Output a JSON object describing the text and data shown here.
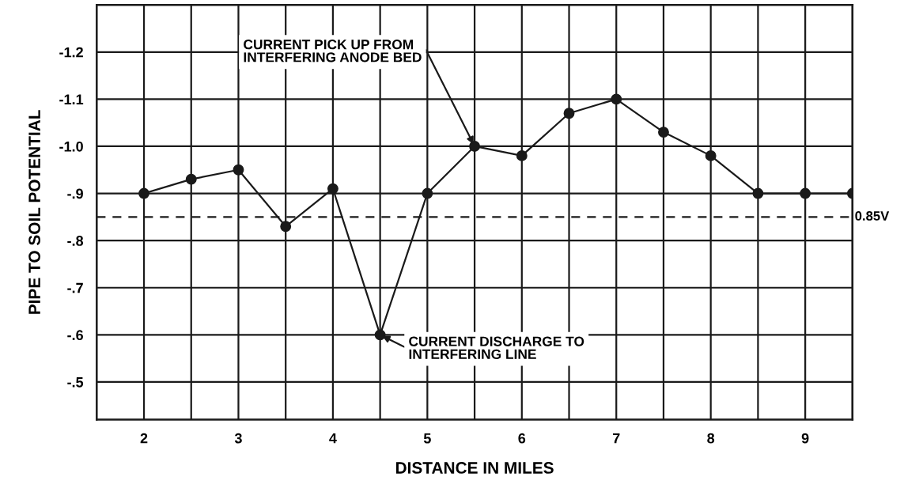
{
  "chart_data": {
    "type": "line",
    "xlabel": "DISTANCE IN MILES",
    "ylabel": "PIPE TO SOIL POTENTIAL",
    "x": [
      2,
      2.5,
      3,
      3.5,
      4,
      4.5,
      5,
      5.5,
      6,
      6.5,
      7,
      7.5,
      8,
      8.5,
      9,
      9.5
    ],
    "series": [
      {
        "color": "#1a1a1a",
        "values": [
          -0.9,
          -0.93,
          -0.95,
          -0.83,
          -0.91,
          -0.6,
          -0.9,
          -1.0,
          -0.98,
          -1.07,
          -1.1,
          -1.03,
          -0.98,
          -0.9,
          -0.9,
          -0.9
        ]
      }
    ],
    "marker": "circle",
    "line_style": "solid",
    "grid": true,
    "xlim": [
      1.5,
      9.5
    ],
    "xticks": [
      2,
      {
        "value": 2.5,
        "label": null
      },
      3,
      {
        "value": 3.5,
        "label": null
      },
      4,
      {
        "value": 4.5,
        "label": null
      },
      5,
      {
        "value": 5.5,
        "label": null
      },
      6,
      {
        "value": 6.5,
        "label": null
      },
      7,
      {
        "value": 7.5,
        "label": null
      },
      8,
      {
        "value": 8.5,
        "label": null
      },
      9,
      {
        "value": 9.5,
        "label": null
      }
    ],
    "ylim": [
      -0.42,
      -1.3
    ],
    "yticks": [
      {
        "value": -0.5,
        "label": "-.5"
      },
      {
        "value": -0.6,
        "label": "-.6"
      },
      {
        "value": -0.7,
        "label": "-.7"
      },
      {
        "value": -0.8,
        "label": "-.8"
      },
      {
        "value": -0.9,
        "label": "-.9"
      },
      {
        "value": -1.0,
        "label": "-1.0"
      },
      {
        "value": -1.1,
        "label": "-1.1"
      },
      {
        "value": -1.2,
        "label": "-1.2"
      }
    ],
    "ref_lines": [
      {
        "axis": "y",
        "value": -0.85,
        "label": "0.85V",
        "color": "#1a1a1a",
        "line_style": "dashed"
      }
    ],
    "annotations": [
      {
        "text": "CURRENT PICK UP FROM\nINTERFERING ANODE BED",
        "x": 5.5,
        "y": -1.0
      },
      {
        "text": "CURRENT DISCHARGE TO\nINTERFERING LINE",
        "x": 4.5,
        "y": -0.6
      }
    ]
  }
}
